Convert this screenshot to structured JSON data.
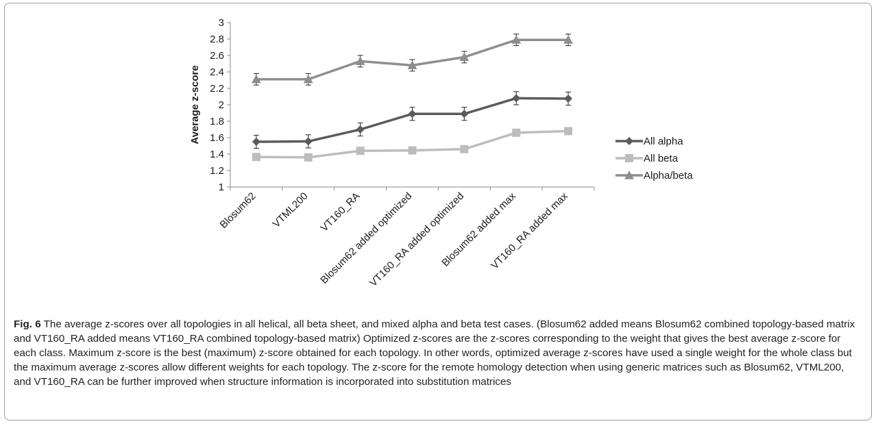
{
  "chart_data": {
    "type": "line",
    "ylabel": "Average z-score",
    "xlabel": "",
    "ylim": [
      1,
      3
    ],
    "yticks": [
      "1",
      "1.2",
      "1.4",
      "1.6",
      "1.8",
      "2",
      "2.2",
      "2.4",
      "2.6",
      "2.8",
      "3"
    ],
    "categories": [
      "Blosum62",
      "VTML200",
      "VT160_RA",
      "Blosum62 added optimized",
      "VT160_RA added  optimized",
      "Blosum62 added max",
      "VT160_RA added max"
    ],
    "legend_position": "right",
    "grid": false,
    "series": [
      {
        "name": "All alpha",
        "color": "#5b5b5b",
        "marker": "diamond",
        "values": [
          1.55,
          1.555,
          1.7,
          1.89,
          1.89,
          2.08,
          2.075
        ],
        "error": [
          0.08,
          0.08,
          0.08,
          0.08,
          0.08,
          0.08,
          0.08
        ]
      },
      {
        "name": "All beta",
        "color": "#bdbdbd",
        "marker": "square",
        "values": [
          1.365,
          1.36,
          1.44,
          1.445,
          1.46,
          1.66,
          1.68
        ],
        "error": null
      },
      {
        "name": "Alpha/beta",
        "color": "#8e8e8e",
        "marker": "triangle",
        "values": [
          2.31,
          2.31,
          2.53,
          2.48,
          2.58,
          2.79,
          2.79
        ],
        "error": [
          0.07,
          0.07,
          0.07,
          0.07,
          0.07,
          0.07,
          0.07
        ]
      }
    ]
  },
  "caption": {
    "label": "Fig. 6",
    "text": "The average z-scores over all topologies in all helical, all beta sheet, and mixed alpha and beta test cases. (Blosum62 added means Blosum62 combined topology-based matrix and VT160_RA added means VT160_RA combined topology-based matrix) Optimized z-scores are the z-scores corresponding to the weight that gives the best average z-score for each class. Maximum z-score is the best (maximum) z-score obtained for each topology. In other words, optimized average z-scores have used a single weight for the whole class but the maximum average z-scores allow different weights for each topology. The z-score for the remote homology detection when using generic matrices such as Blosum62, VTML200, and VT160_RA can be further improved when structure information is incorporated into substitution matrices"
  }
}
